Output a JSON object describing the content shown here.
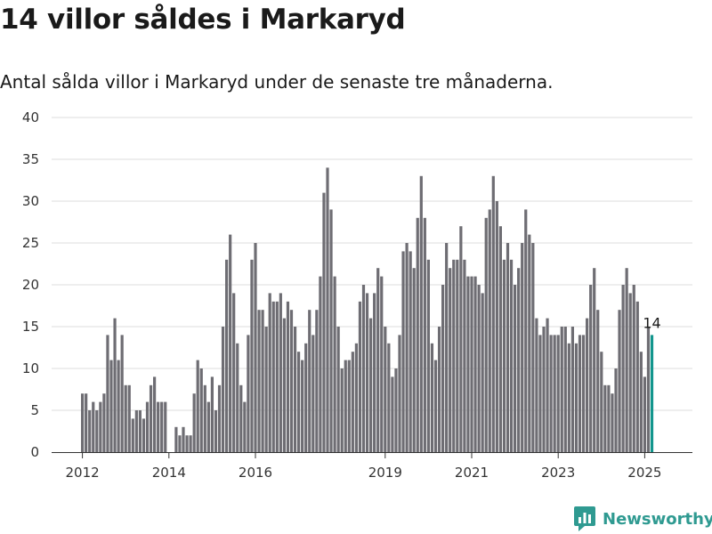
{
  "title": "14 villor såldes i Markaryd",
  "subtitle": "Antal sålda villor i Markaryd under de senaste tre månaderna.",
  "brand": {
    "name": "Newsworthy",
    "color": "#2f9a91",
    "icon": "newsworthy-logo-icon"
  },
  "chart_data": {
    "type": "bar",
    "title": "",
    "xlabel": "",
    "ylabel": "",
    "ylim": [
      0,
      40
    ],
    "yticks": [
      0,
      5,
      10,
      15,
      20,
      25,
      30,
      35,
      40
    ],
    "xticks": [
      "2012",
      "2014",
      "2016",
      "2019",
      "2021",
      "2023",
      "2025"
    ],
    "grid": true,
    "bar_color": "#6e6d73",
    "highlight_color": "#13968d",
    "highlight_label": "14",
    "values": [
      7,
      7,
      5,
      6,
      5,
      6,
      7,
      14,
      11,
      16,
      11,
      14,
      8,
      8,
      4,
      5,
      5,
      4,
      6,
      8,
      9,
      6,
      6,
      6,
      null,
      null,
      3,
      2,
      3,
      2,
      2,
      7,
      11,
      10,
      8,
      6,
      9,
      5,
      8,
      15,
      23,
      26,
      19,
      13,
      8,
      6,
      14,
      23,
      25,
      17,
      17,
      15,
      19,
      18,
      18,
      19,
      16,
      18,
      17,
      15,
      12,
      11,
      13,
      17,
      14,
      17,
      21,
      31,
      34,
      29,
      21,
      15,
      10,
      11,
      11,
      12,
      13,
      18,
      20,
      19,
      16,
      19,
      22,
      21,
      15,
      13,
      9,
      10,
      14,
      24,
      25,
      24,
      22,
      28,
      33,
      28,
      23,
      13,
      11,
      15,
      20,
      25,
      22,
      23,
      23,
      27,
      23,
      21,
      21,
      21,
      20,
      19,
      28,
      29,
      33,
      30,
      27,
      23,
      25,
      23,
      20,
      22,
      25,
      29,
      26,
      25,
      16,
      14,
      15,
      16,
      14,
      14,
      14,
      15,
      15,
      13,
      15,
      13,
      14,
      14,
      16,
      20,
      22,
      17,
      12,
      8,
      8,
      7,
      10,
      17,
      20,
      22,
      19,
      20,
      18,
      12,
      9,
      15,
      14
    ]
  }
}
